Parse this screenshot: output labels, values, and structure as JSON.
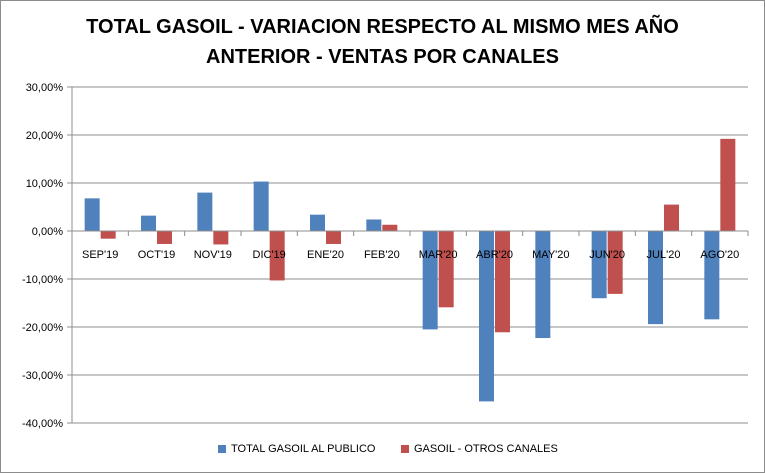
{
  "chart_data": {
    "type": "bar",
    "title_line1": "TOTAL GASOIL - VARIACION RESPECTO AL MISMO MES AÑO",
    "title_line2": "ANTERIOR - VENTAS POR CANALES",
    "categories": [
      "SEP'19",
      "OCT'19",
      "NOV'19",
      "DIC'19",
      "ENE'20",
      "FEB'20",
      "MAR'20",
      "ABR'20",
      "MAY'20",
      "JUN'20",
      "JUL'20",
      "AGO'20"
    ],
    "series": [
      {
        "name": "TOTAL GASOIL AL PUBLICO",
        "color": "#4f81bd",
        "values": [
          6.8,
          3.2,
          8.0,
          10.3,
          3.4,
          2.4,
          -20.5,
          -35.5,
          -22.3,
          -14.0,
          -19.4,
          -18.4
        ]
      },
      {
        "name": "GASOIL - OTROS CANALES",
        "color": "#c0504d",
        "values": [
          -1.6,
          -2.7,
          -2.8,
          -10.3,
          -2.7,
          1.3,
          -15.9,
          -21.1,
          0.0,
          -13.1,
          5.5,
          19.2
        ]
      }
    ],
    "yticks": [
      "30,00%",
      "20,00%",
      "10,00%",
      "0,00%",
      "-10,00%",
      "-20,00%",
      "-30,00%",
      "-40,00%"
    ],
    "ylim": [
      -40,
      30
    ],
    "ylabel": "",
    "xlabel": "",
    "legend_position": "bottom"
  }
}
